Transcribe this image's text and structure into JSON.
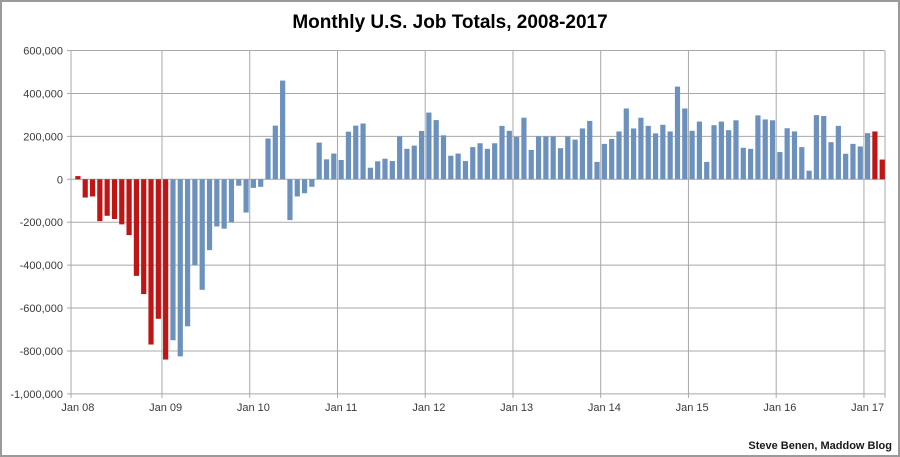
{
  "chart_data": {
    "type": "bar",
    "title": "Monthly U.S. Job Totals, 2008-2017",
    "attribution": "Steve Benen, Maddow Blog",
    "xlabel": "",
    "ylabel": "",
    "ylim": [
      -1000000,
      600000
    ],
    "grid": true,
    "legend": "none",
    "colors": {
      "red": "#c01515",
      "blue": "#6d91bd",
      "grid": "#a8a8a8",
      "tick_text": "#3a3a3a"
    },
    "y_ticks": [
      {
        "value": 600000,
        "label": "600,000"
      },
      {
        "value": 400000,
        "label": "400,000"
      },
      {
        "value": 200000,
        "label": "200,000"
      },
      {
        "value": 0,
        "label": "0"
      },
      {
        "value": -200000,
        "label": "-200,000"
      },
      {
        "value": -400000,
        "label": "-400,000"
      },
      {
        "value": -600000,
        "label": "-600,000"
      },
      {
        "value": -800000,
        "label": "-800,000"
      },
      {
        "value": -1000000,
        "label": "-1,000,000"
      }
    ],
    "x_tick_labels": [
      "Jan 08",
      "Jan 09",
      "Jan 10",
      "Jan 11",
      "Jan 12",
      "Jan 13",
      "Jan 14",
      "Jan 15",
      "Jan 16",
      "Jan 17"
    ],
    "months": [
      {
        "label": "Jan 2008",
        "value": 15000,
        "color": "red"
      },
      {
        "label": "Feb 2008",
        "value": -85000,
        "color": "red"
      },
      {
        "label": "Mar 2008",
        "value": -80000,
        "color": "red"
      },
      {
        "label": "Apr 2008",
        "value": -195000,
        "color": "red"
      },
      {
        "label": "May 2008",
        "value": -170000,
        "color": "red"
      },
      {
        "label": "Jun 2008",
        "value": -185000,
        "color": "red"
      },
      {
        "label": "Jul 2008",
        "value": -210000,
        "color": "red"
      },
      {
        "label": "Aug 2008",
        "value": -260000,
        "color": "red"
      },
      {
        "label": "Sep 2008",
        "value": -450000,
        "color": "red"
      },
      {
        "label": "Oct 2008",
        "value": -535000,
        "color": "red"
      },
      {
        "label": "Nov 2008",
        "value": -770000,
        "color": "red"
      },
      {
        "label": "Dec 2008",
        "value": -650000,
        "color": "red"
      },
      {
        "label": "Jan 2009",
        "value": -840000,
        "color": "red"
      },
      {
        "label": "Feb 2009",
        "value": -750000,
        "color": "blue"
      },
      {
        "label": "Mar 2009",
        "value": -825000,
        "color": "blue"
      },
      {
        "label": "Apr 2009",
        "value": -685000,
        "color": "blue"
      },
      {
        "label": "May 2009",
        "value": -400000,
        "color": "blue"
      },
      {
        "label": "Jun 2009",
        "value": -515000,
        "color": "blue"
      },
      {
        "label": "Jul 2009",
        "value": -330000,
        "color": "blue"
      },
      {
        "label": "Aug 2009",
        "value": -220000,
        "color": "blue"
      },
      {
        "label": "Sep 2009",
        "value": -230000,
        "color": "blue"
      },
      {
        "label": "Oct 2009",
        "value": -200000,
        "color": "blue"
      },
      {
        "label": "Nov 2009",
        "value": -30000,
        "color": "blue"
      },
      {
        "label": "Dec 2009",
        "value": -155000,
        "color": "blue"
      },
      {
        "label": "Jan 2010",
        "value": -40000,
        "color": "blue"
      },
      {
        "label": "Feb 2010",
        "value": -35000,
        "color": "blue"
      },
      {
        "label": "Mar 2010",
        "value": 190000,
        "color": "blue"
      },
      {
        "label": "Apr 2010",
        "value": 250000,
        "color": "blue"
      },
      {
        "label": "May 2010",
        "value": 460000,
        "color": "blue"
      },
      {
        "label": "Jun 2010",
        "value": -190000,
        "color": "blue"
      },
      {
        "label": "Jul 2010",
        "value": -80000,
        "color": "blue"
      },
      {
        "label": "Aug 2010",
        "value": -65000,
        "color": "blue"
      },
      {
        "label": "Sep 2010",
        "value": -35000,
        "color": "blue"
      },
      {
        "label": "Oct 2010",
        "value": 171000,
        "color": "blue"
      },
      {
        "label": "Nov 2010",
        "value": 93000,
        "color": "blue"
      },
      {
        "label": "Dec 2010",
        "value": 120000,
        "color": "blue"
      },
      {
        "label": "Jan 2011",
        "value": 90000,
        "color": "blue"
      },
      {
        "label": "Feb 2011",
        "value": 222000,
        "color": "blue"
      },
      {
        "label": "Mar 2011",
        "value": 250000,
        "color": "blue"
      },
      {
        "label": "Apr 2011",
        "value": 260000,
        "color": "blue"
      },
      {
        "label": "May 2011",
        "value": 54000,
        "color": "blue"
      },
      {
        "label": "Jun 2011",
        "value": 84000,
        "color": "blue"
      },
      {
        "label": "Jul 2011",
        "value": 96000,
        "color": "blue"
      },
      {
        "label": "Aug 2011",
        "value": 85000,
        "color": "blue"
      },
      {
        "label": "Sep 2011",
        "value": 200000,
        "color": "blue"
      },
      {
        "label": "Oct 2011",
        "value": 142000,
        "color": "blue"
      },
      {
        "label": "Nov 2011",
        "value": 157000,
        "color": "blue"
      },
      {
        "label": "Dec 2011",
        "value": 225000,
        "color": "blue"
      },
      {
        "label": "Jan 2012",
        "value": 311000,
        "color": "blue"
      },
      {
        "label": "Feb 2012",
        "value": 276000,
        "color": "blue"
      },
      {
        "label": "Mar 2012",
        "value": 205000,
        "color": "blue"
      },
      {
        "label": "Apr 2012",
        "value": 110000,
        "color": "blue"
      },
      {
        "label": "May 2012",
        "value": 120000,
        "color": "blue"
      },
      {
        "label": "Jun 2012",
        "value": 85000,
        "color": "blue"
      },
      {
        "label": "Jul 2012",
        "value": 150000,
        "color": "blue"
      },
      {
        "label": "Aug 2012",
        "value": 168000,
        "color": "blue"
      },
      {
        "label": "Sep 2012",
        "value": 142000,
        "color": "blue"
      },
      {
        "label": "Oct 2012",
        "value": 168000,
        "color": "blue"
      },
      {
        "label": "Nov 2012",
        "value": 249000,
        "color": "blue"
      },
      {
        "label": "Dec 2012",
        "value": 226000,
        "color": "blue"
      },
      {
        "label": "Jan 2013",
        "value": 198000,
        "color": "blue"
      },
      {
        "label": "Feb 2013",
        "value": 287000,
        "color": "blue"
      },
      {
        "label": "Mar 2013",
        "value": 137000,
        "color": "blue"
      },
      {
        "label": "Apr 2013",
        "value": 200000,
        "color": "blue"
      },
      {
        "label": "May 2013",
        "value": 200000,
        "color": "blue"
      },
      {
        "label": "Jun 2013",
        "value": 200000,
        "color": "blue"
      },
      {
        "label": "Jul 2013",
        "value": 145000,
        "color": "blue"
      },
      {
        "label": "Aug 2013",
        "value": 200000,
        "color": "blue"
      },
      {
        "label": "Sep 2013",
        "value": 185000,
        "color": "blue"
      },
      {
        "label": "Oct 2013",
        "value": 237000,
        "color": "blue"
      },
      {
        "label": "Nov 2013",
        "value": 272000,
        "color": "blue"
      },
      {
        "label": "Dec 2013",
        "value": 81000,
        "color": "blue"
      },
      {
        "label": "Jan 2014",
        "value": 165000,
        "color": "blue"
      },
      {
        "label": "Feb 2014",
        "value": 188000,
        "color": "blue"
      },
      {
        "label": "Mar 2014",
        "value": 223000,
        "color": "blue"
      },
      {
        "label": "Apr 2014",
        "value": 330000,
        "color": "blue"
      },
      {
        "label": "May 2014",
        "value": 237000,
        "color": "blue"
      },
      {
        "label": "Jun 2014",
        "value": 287000,
        "color": "blue"
      },
      {
        "label": "Jul 2014",
        "value": 249000,
        "color": "blue"
      },
      {
        "label": "Aug 2014",
        "value": 214000,
        "color": "blue"
      },
      {
        "label": "Sep 2014",
        "value": 254000,
        "color": "blue"
      },
      {
        "label": "Oct 2014",
        "value": 223000,
        "color": "blue"
      },
      {
        "label": "Nov 2014",
        "value": 432000,
        "color": "blue"
      },
      {
        "label": "Dec 2014",
        "value": 330000,
        "color": "blue"
      },
      {
        "label": "Jan 2015",
        "value": 226000,
        "color": "blue"
      },
      {
        "label": "Feb 2015",
        "value": 269000,
        "color": "blue"
      },
      {
        "label": "Mar 2015",
        "value": 81000,
        "color": "blue"
      },
      {
        "label": "Apr 2015",
        "value": 252000,
        "color": "blue"
      },
      {
        "label": "May 2015",
        "value": 269000,
        "color": "blue"
      },
      {
        "label": "Jun 2015",
        "value": 229000,
        "color": "blue"
      },
      {
        "label": "Jul 2015",
        "value": 275000,
        "color": "blue"
      },
      {
        "label": "Aug 2015",
        "value": 147000,
        "color": "blue"
      },
      {
        "label": "Sep 2015",
        "value": 142000,
        "color": "blue"
      },
      {
        "label": "Oct 2015",
        "value": 298000,
        "color": "blue"
      },
      {
        "label": "Nov 2015",
        "value": 279000,
        "color": "blue"
      },
      {
        "label": "Dec 2015",
        "value": 275000,
        "color": "blue"
      },
      {
        "label": "Jan 2016",
        "value": 127000,
        "color": "blue"
      },
      {
        "label": "Feb 2016",
        "value": 238000,
        "color": "blue"
      },
      {
        "label": "Mar 2016",
        "value": 223000,
        "color": "blue"
      },
      {
        "label": "Apr 2016",
        "value": 150000,
        "color": "blue"
      },
      {
        "label": "May 2016",
        "value": 40000,
        "color": "blue"
      },
      {
        "label": "Jun 2016",
        "value": 299000,
        "color": "blue"
      },
      {
        "label": "Jul 2016",
        "value": 295000,
        "color": "blue"
      },
      {
        "label": "Aug 2016",
        "value": 173000,
        "color": "blue"
      },
      {
        "label": "Sep 2016",
        "value": 249000,
        "color": "blue"
      },
      {
        "label": "Oct 2016",
        "value": 119000,
        "color": "blue"
      },
      {
        "label": "Nov 2016",
        "value": 165000,
        "color": "blue"
      },
      {
        "label": "Dec 2016",
        "value": 153000,
        "color": "blue"
      },
      {
        "label": "Jan 2017",
        "value": 215000,
        "color": "blue"
      },
      {
        "label": "Feb 2017",
        "value": 223000,
        "color": "red"
      },
      {
        "label": "Mar 2017",
        "value": 92000,
        "color": "red"
      }
    ]
  }
}
